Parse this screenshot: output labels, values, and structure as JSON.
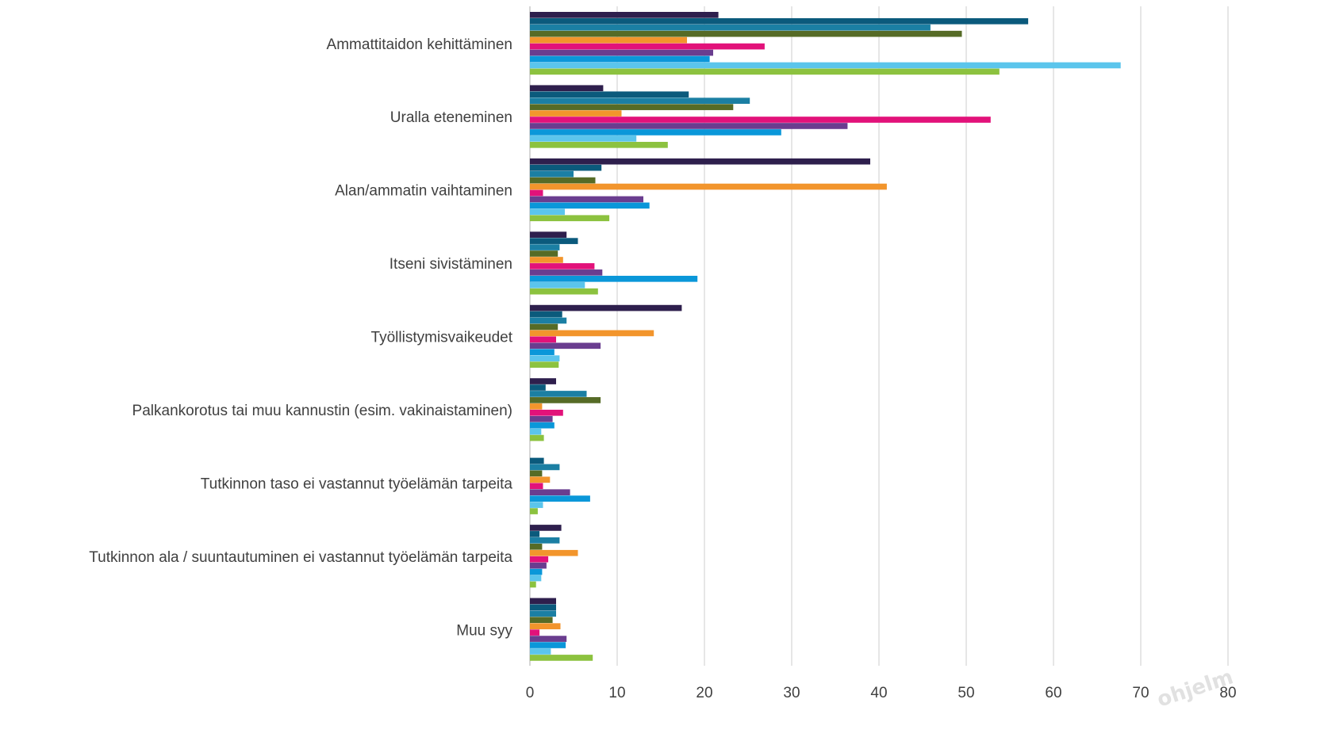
{
  "chart_data": {
    "type": "bar",
    "orientation": "horizontal",
    "title": "",
    "xlabel": "",
    "ylabel": "",
    "xlim": [
      0,
      80
    ],
    "x_ticks": [
      "0",
      "10",
      "20",
      "30",
      "40",
      "50",
      "60",
      "70",
      "80"
    ],
    "grid": true,
    "legend": "none",
    "categories": [
      "Ammattitaidon kehittäminen",
      "Uralla eteneminen",
      "Alan/ammatin vaihtaminen",
      "Itseni sivistäminen",
      "Työllistymisvaikeudet",
      "Palkankorotus tai muu kannustin (esim. vakinaistaminen)",
      "Tutkinnon taso ei vastannut työelämän tarpeita",
      "Tutkinnon ala / suuntautuminen ei vastannut työelämän tarpeita",
      "Muu syy"
    ],
    "series": [
      {
        "color": "#2e1f4d",
        "values": [
          21.6,
          8.4,
          39,
          4.2,
          17.4,
          3.0,
          0,
          3.6,
          3.0
        ]
      },
      {
        "color": "#0b5a7c",
        "values": [
          57.1,
          18.2,
          8.2,
          5.5,
          3.7,
          1.8,
          1.6,
          1.1,
          3.0
        ]
      },
      {
        "color": "#1b7fa3",
        "values": [
          45.9,
          25.2,
          5.0,
          3.4,
          4.2,
          6.5,
          3.4,
          3.4,
          3.0
        ]
      },
      {
        "color": "#566b26",
        "values": [
          49.5,
          23.3,
          7.5,
          3.2,
          3.2,
          8.1,
          1.4,
          1.4,
          2.6
        ]
      },
      {
        "color": "#f2952c",
        "values": [
          18,
          10.5,
          40.9,
          3.8,
          14.2,
          1.4,
          2.3,
          5.5,
          3.5
        ]
      },
      {
        "color": "#e2127a",
        "values": [
          26.9,
          52.8,
          1.5,
          7.4,
          3.0,
          3.8,
          1.5,
          2.1,
          1.1
        ]
      },
      {
        "color": "#6a3d8f",
        "values": [
          21,
          36.4,
          13,
          8.3,
          8.1,
          2.6,
          4.6,
          1.9,
          4.2
        ]
      },
      {
        "color": "#0a97d9",
        "values": [
          20.6,
          28.8,
          13.7,
          19.2,
          2.8,
          2.8,
          6.9,
          1.4,
          4.1
        ]
      },
      {
        "color": "#5bc5ec",
        "values": [
          67.7,
          12.2,
          4.0,
          6.3,
          3.4,
          1.3,
          1.5,
          1.3,
          2.4
        ]
      },
      {
        "color": "#8cc23f",
        "values": [
          53.8,
          15.8,
          9.1,
          7.8,
          3.3,
          1.6,
          0.9,
          0.7,
          7.2
        ]
      }
    ]
  },
  "watermark": "ohjelm"
}
